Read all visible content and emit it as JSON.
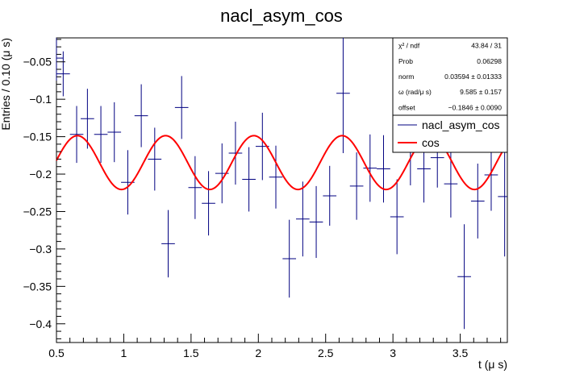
{
  "chart_data": {
    "type": "scatter",
    "title": "nacl_asym_cos",
    "xlabel": "t (μ s)",
    "ylabel": "Entries / 0.10 (μ s)",
    "xlim": [
      0.5,
      3.85
    ],
    "ylim": [
      -0.425,
      -0.018
    ],
    "x_ticks": [
      0.5,
      1,
      1.5,
      2,
      2.5,
      3,
      3.5
    ],
    "x_tick_labels": [
      "0.5",
      "1",
      "1.5",
      "2",
      "2.5",
      "3",
      "3.5"
    ],
    "y_ticks": [
      -0.05,
      -0.1,
      -0.15,
      -0.2,
      -0.25,
      -0.3,
      -0.35,
      -0.4
    ],
    "y_tick_labels": [
      "−0.05",
      "−0.1",
      "−0.15",
      "−0.2",
      "−0.25",
      "−0.3",
      "−0.35",
      "−0.4"
    ],
    "grid": false,
    "legend_position": "top-right",
    "series": [
      {
        "name": "nacl_asym_cos",
        "kind": "points_with_errors",
        "color": "#000080",
        "bin_width": 0.1,
        "x": [
          0.5,
          0.55,
          0.65,
          0.73,
          0.83,
          0.93,
          1.03,
          1.13,
          1.23,
          1.33,
          1.43,
          1.53,
          1.63,
          1.73,
          1.83,
          1.93,
          2.03,
          2.13,
          2.23,
          2.33,
          2.43,
          2.53,
          2.63,
          2.73,
          2.83,
          2.93,
          3.03,
          3.13,
          3.23,
          3.33,
          3.43,
          3.53,
          3.63,
          3.73,
          3.83
        ],
        "y": [
          -0.045,
          -0.066,
          -0.147,
          -0.126,
          -0.147,
          -0.144,
          -0.211,
          -0.122,
          -0.18,
          -0.293,
          -0.111,
          -0.218,
          -0.239,
          -0.199,
          -0.172,
          -0.207,
          -0.163,
          -0.204,
          -0.313,
          -0.26,
          -0.264,
          -0.229,
          -0.092,
          -0.216,
          -0.192,
          -0.193,
          -0.257,
          -0.17,
          -0.193,
          -0.178,
          -0.213,
          -0.337,
          -0.236,
          -0.201,
          -0.23
        ],
        "err": [
          0.03,
          0.03,
          0.038,
          0.04,
          0.038,
          0.04,
          0.043,
          0.042,
          0.042,
          0.045,
          0.042,
          0.042,
          0.043,
          0.04,
          0.042,
          0.043,
          0.045,
          0.042,
          0.052,
          0.05,
          0.048,
          0.04,
          0.08,
          0.045,
          0.045,
          0.045,
          0.05,
          0.045,
          0.045,
          0.04,
          0.045,
          0.07,
          0.05,
          0.048,
          0.08
        ]
      },
      {
        "name": "cos",
        "kind": "curve",
        "color": "#ff0000",
        "function": "offset + norm * cos(omega * t)",
        "norm": 0.03594,
        "omega": 9.585,
        "offset": -0.1846
      }
    ],
    "stats_box": {
      "rows": [
        {
          "label": "χ² / ndf",
          "value": "43.84 / 31"
        },
        {
          "label": "Prob",
          "value": "0.06298"
        },
        {
          "label": "norm",
          "value": "0.03594 ± 0.01333"
        },
        {
          "label": "ω (rad/μ s)",
          "value": "9.585 ± 0.157"
        },
        {
          "label": "offset",
          "value": "−0.1846 ± 0.0090"
        }
      ]
    },
    "legend": [
      {
        "label": "nacl_asym_cos",
        "color": "#000080"
      },
      {
        "label": "cos",
        "color": "#ff0000"
      }
    ]
  }
}
